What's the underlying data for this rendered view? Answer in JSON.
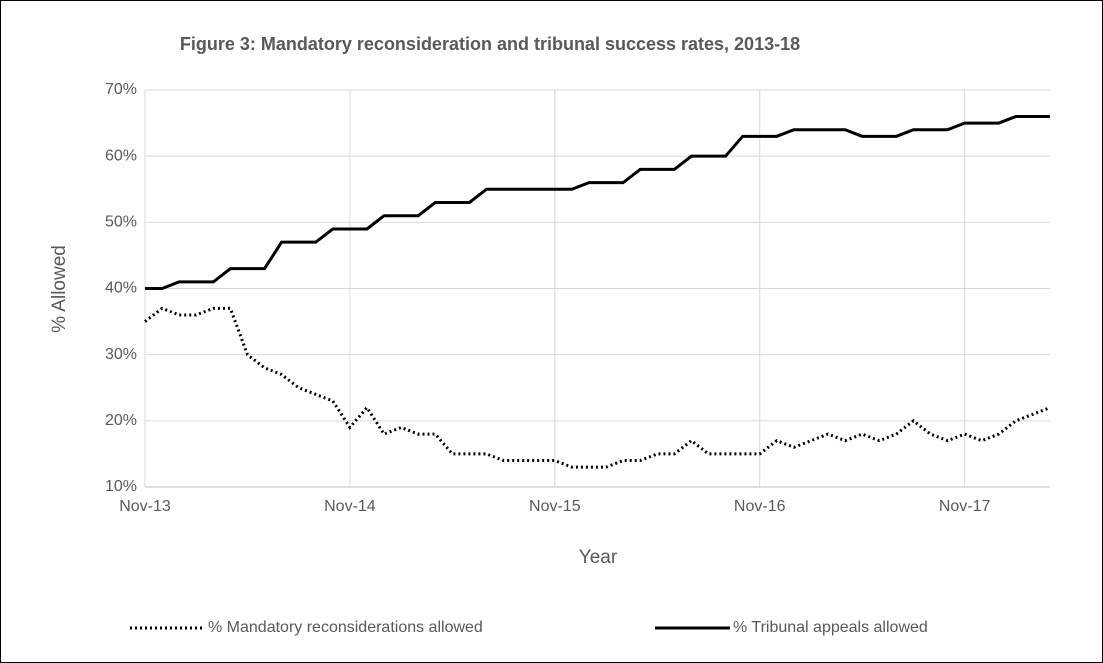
{
  "chart_data": {
    "type": "line",
    "title": "Figure 3: Mandatory reconsideration and tribunal success rates, 2013-18",
    "x_label": "Year",
    "y_label": "% Allowed",
    "categories": [
      "Nov-13",
      null,
      null,
      null,
      null,
      null,
      null,
      null,
      null,
      null,
      null,
      null,
      "Nov-14",
      null,
      null,
      null,
      null,
      null,
      null,
      null,
      null,
      null,
      null,
      null,
      "Nov-15",
      null,
      null,
      null,
      null,
      null,
      null,
      null,
      null,
      null,
      null,
      null,
      "Nov-16",
      null,
      null,
      null,
      null,
      null,
      null,
      null,
      null,
      null,
      null,
      null,
      "Nov-17",
      null,
      null,
      null,
      null,
      null
    ],
    "series": [
      {
        "name": "% Mandatory reconsiderations allowed",
        "color": "#000000",
        "dash": "dotted",
        "values": [
          35,
          37,
          36,
          36,
          37,
          37,
          30,
          28,
          27,
          25,
          24,
          23,
          19,
          22,
          18,
          19,
          18,
          18,
          15,
          15,
          15,
          14,
          14,
          14,
          14,
          13,
          13,
          13,
          14,
          14,
          15,
          15,
          17,
          15,
          15,
          15,
          15,
          17,
          16,
          17,
          18,
          17,
          18,
          17,
          18,
          20,
          18,
          17,
          18,
          17,
          18,
          20,
          21,
          22
        ]
      },
      {
        "name": "% Tribunal appeals allowed",
        "color": "#000000",
        "dash": "solid",
        "values": [
          40,
          40,
          41,
          41,
          41,
          43,
          43,
          43,
          47,
          47,
          47,
          49,
          49,
          49,
          51,
          51,
          51,
          53,
          53,
          53,
          55,
          55,
          55,
          55,
          55,
          55,
          56,
          56,
          56,
          58,
          58,
          58,
          60,
          60,
          60,
          63,
          63,
          63,
          64,
          64,
          64,
          64,
          63,
          63,
          63,
          64,
          64,
          64,
          65,
          65,
          65,
          66,
          66,
          66
        ]
      }
    ],
    "ylim": [
      10,
      70
    ],
    "yticks": [
      {
        "value": 10,
        "label": "10%"
      },
      {
        "value": 20,
        "label": "20%"
      },
      {
        "value": 30,
        "label": "30%"
      },
      {
        "value": 40,
        "label": "40%"
      },
      {
        "value": 50,
        "label": "50%"
      },
      {
        "value": 60,
        "label": "60%"
      },
      {
        "value": 70,
        "label": "70%"
      }
    ],
    "grid": true,
    "legend": "bottom"
  }
}
